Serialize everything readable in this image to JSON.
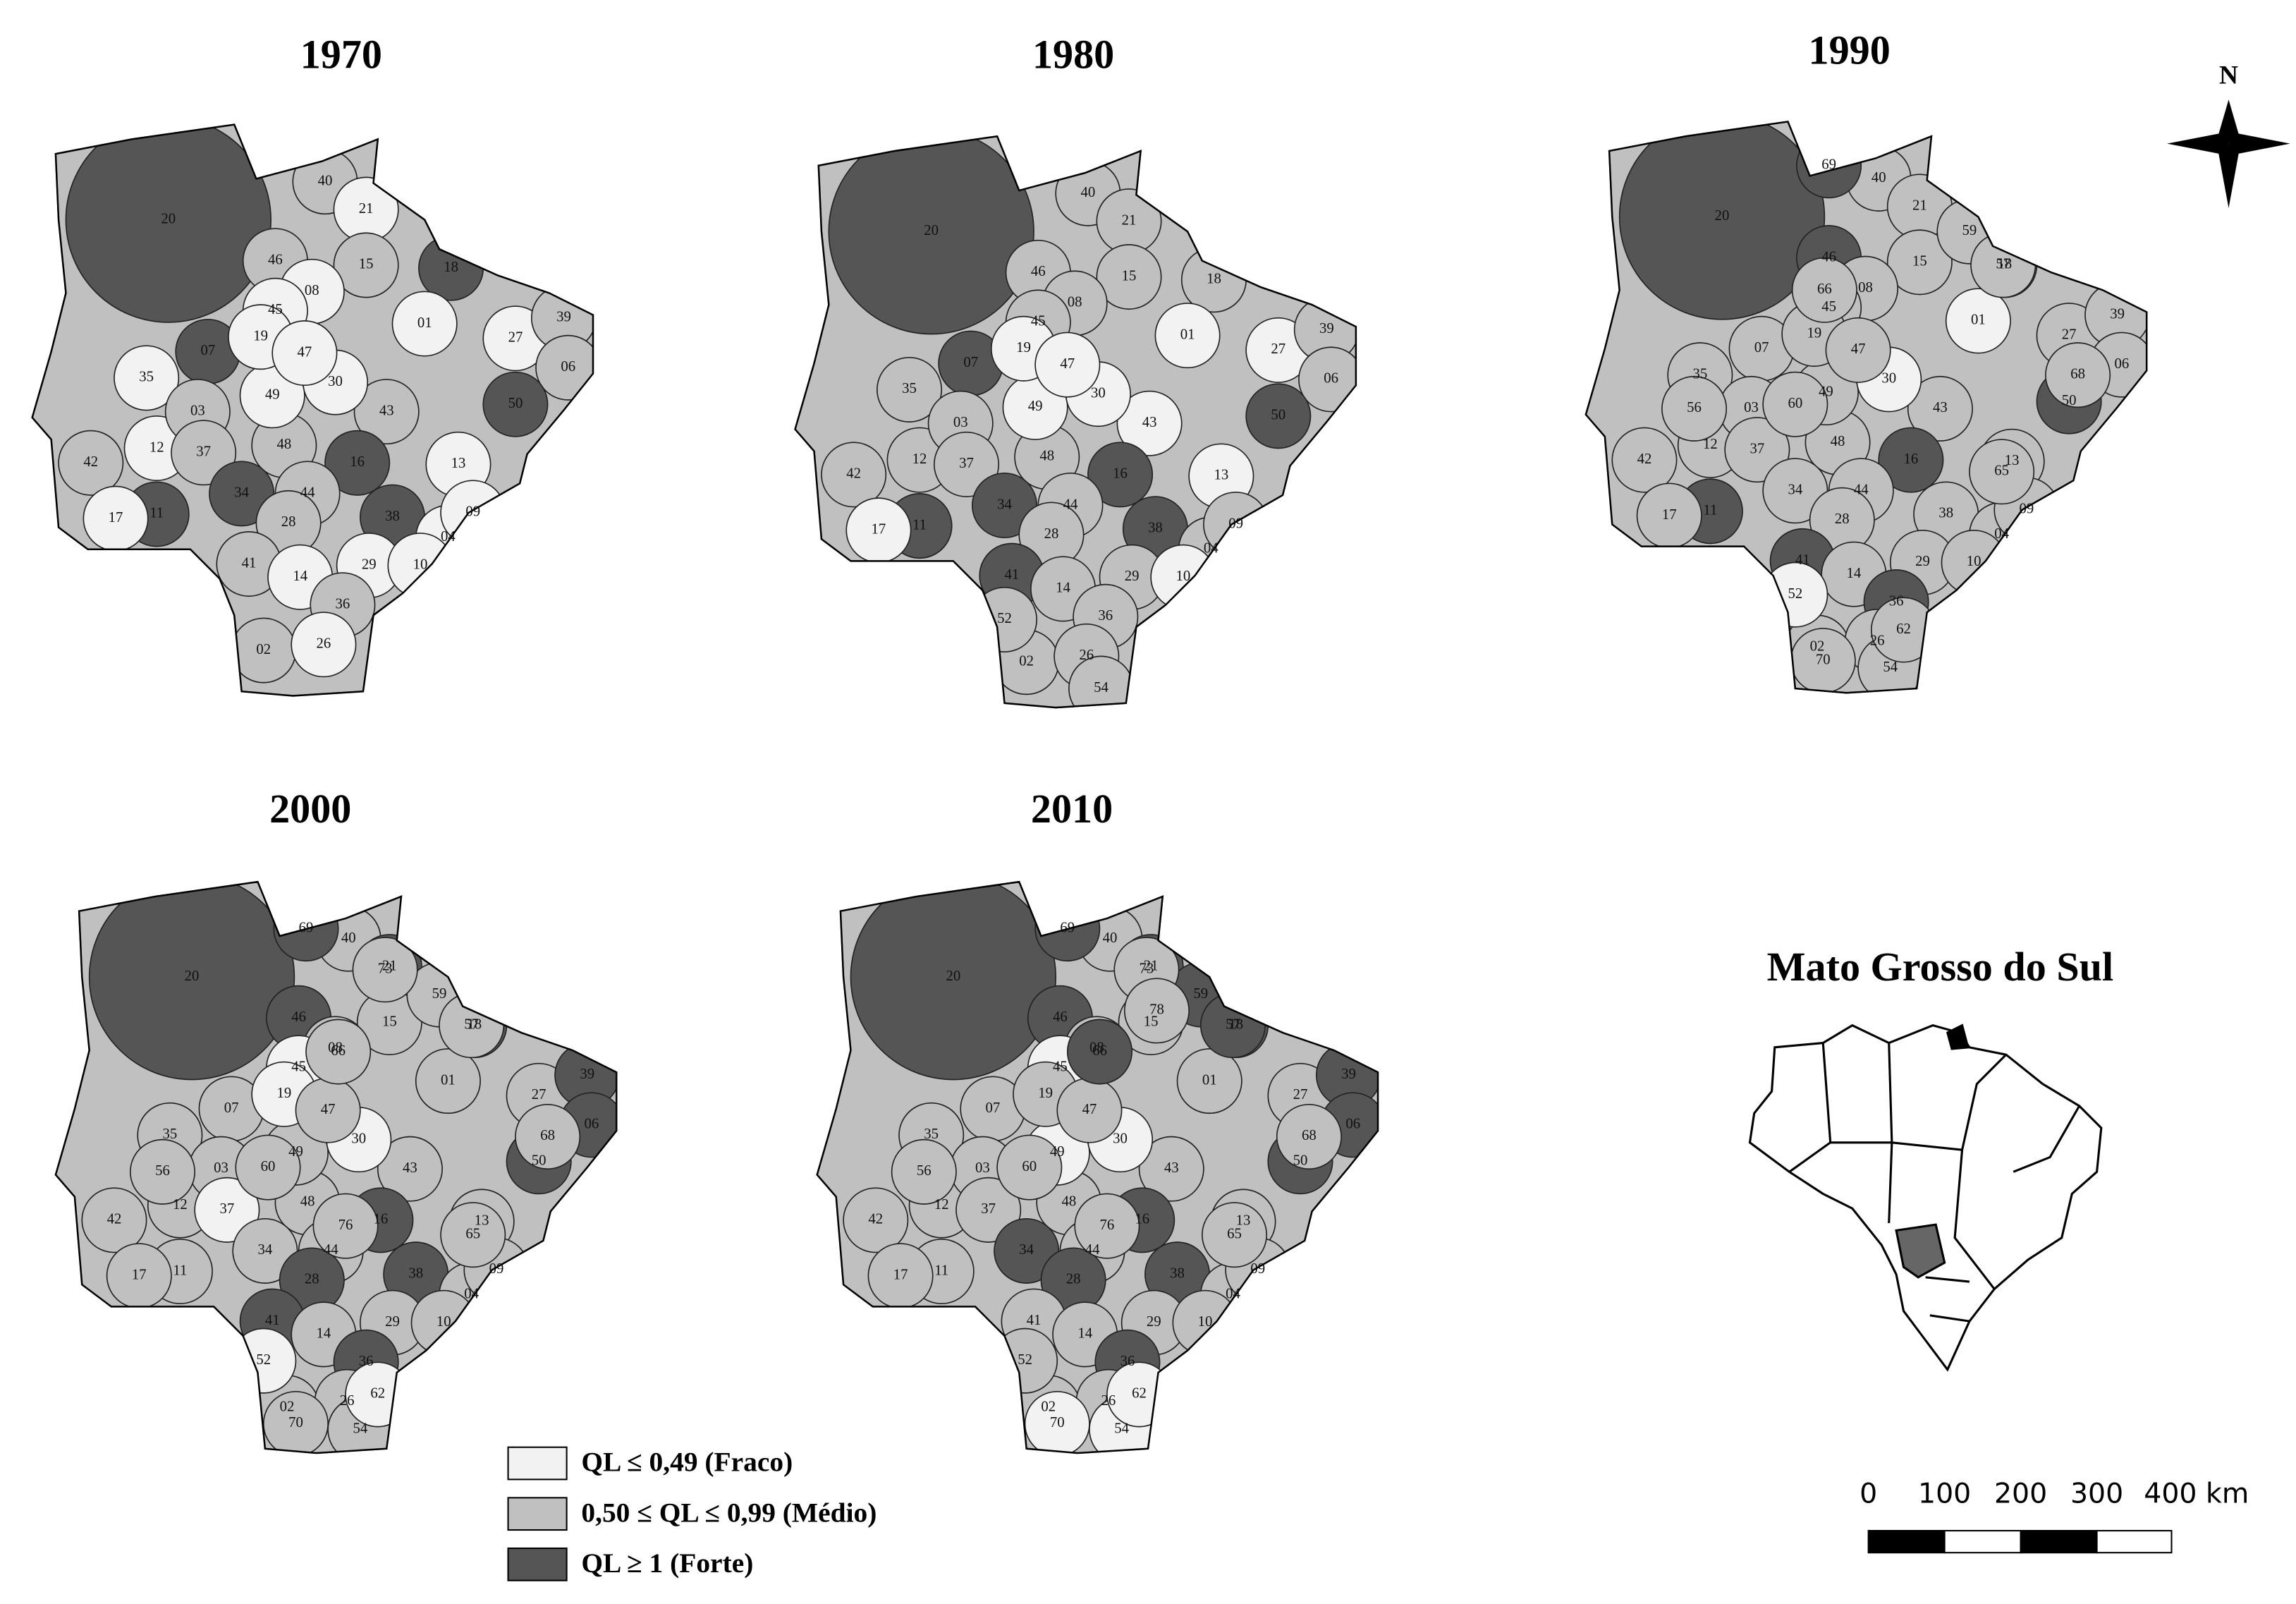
{
  "maps": [
    {
      "year": "1970",
      "regions": {
        "labels": [
          "20",
          "40",
          "21",
          "46",
          "15",
          "18",
          "01",
          "27",
          "39",
          "06",
          "50",
          "07",
          "35",
          "12",
          "03",
          "37",
          "42",
          "48",
          "43",
          "16",
          "13",
          "44",
          "34",
          "11",
          "17",
          "28",
          "38",
          "04",
          "09",
          "41",
          "14",
          "29",
          "10",
          "36",
          "02",
          "26",
          "49",
          "30",
          "08",
          "45",
          "19",
          "47"
        ],
        "classes": [
          2,
          1,
          0,
          1,
          1,
          2,
          0,
          0,
          1,
          1,
          2,
          2,
          0,
          0,
          1,
          1,
          1,
          1,
          1,
          2,
          0,
          1,
          2,
          2,
          0,
          1,
          2,
          0,
          0,
          1,
          0,
          0,
          0,
          1,
          1,
          0,
          0,
          0,
          0,
          0,
          0,
          0
        ]
      }
    },
    {
      "year": "1980",
      "regions": {
        "labels": [
          "20",
          "40",
          "21",
          "46",
          "15",
          "18",
          "01",
          "27",
          "39",
          "06",
          "50",
          "07",
          "35",
          "12",
          "03",
          "37",
          "42",
          "48",
          "43",
          "16",
          "13",
          "44",
          "34",
          "11",
          "17",
          "28",
          "38",
          "04",
          "09",
          "41",
          "14",
          "29",
          "10",
          "36",
          "02",
          "26",
          "49",
          "30",
          "08",
          "45",
          "19",
          "47",
          "52",
          "54"
        ],
        "classes": [
          2,
          1,
          1,
          1,
          1,
          1,
          0,
          0,
          1,
          1,
          2,
          2,
          1,
          1,
          1,
          1,
          1,
          1,
          0,
          2,
          0,
          1,
          2,
          2,
          0,
          1,
          2,
          1,
          1,
          2,
          1,
          1,
          0,
          1,
          1,
          1,
          0,
          0,
          1,
          1,
          0,
          0,
          1,
          1
        ]
      }
    },
    {
      "year": "1990",
      "regions": {
        "labels": [
          "20",
          "40",
          "21",
          "46",
          "15",
          "18",
          "01",
          "27",
          "39",
          "06",
          "50",
          "07",
          "35",
          "12",
          "03",
          "37",
          "42",
          "48",
          "43",
          "16",
          "13",
          "44",
          "34",
          "11",
          "17",
          "28",
          "38",
          "04",
          "09",
          "41",
          "14",
          "29",
          "10",
          "36",
          "02",
          "26",
          "49",
          "30",
          "08",
          "45",
          "19",
          "47",
          "59",
          "57",
          "65",
          "56",
          "60",
          "66",
          "52",
          "54",
          "62",
          "68",
          "69",
          "70"
        ],
        "classes": [
          2,
          1,
          1,
          2,
          1,
          2,
          0,
          1,
          1,
          1,
          2,
          1,
          1,
          1,
          1,
          1,
          1,
          1,
          1,
          2,
          1,
          1,
          1,
          2,
          1,
          1,
          1,
          1,
          1,
          2,
          1,
          1,
          1,
          2,
          1,
          1,
          1,
          0,
          1,
          1,
          1,
          1,
          1,
          1,
          1,
          1,
          1,
          1,
          0,
          1,
          1,
          1,
          2,
          1
        ]
      }
    },
    {
      "year": "2000",
      "regions": {
        "labels": [
          "20",
          "40",
          "21",
          "46",
          "15",
          "18",
          "01",
          "27",
          "39",
          "06",
          "50",
          "07",
          "35",
          "12",
          "03",
          "37",
          "42",
          "48",
          "43",
          "16",
          "13",
          "44",
          "34",
          "11",
          "17",
          "28",
          "38",
          "04",
          "09",
          "41",
          "14",
          "29",
          "10",
          "36",
          "02",
          "26",
          "49",
          "30",
          "08",
          "45",
          "19",
          "47",
          "59",
          "57",
          "65",
          "56",
          "60",
          "66",
          "52",
          "54",
          "62",
          "68",
          "69",
          "70",
          "73",
          "76"
        ],
        "classes": [
          2,
          1,
          2,
          2,
          1,
          2,
          1,
          1,
          2,
          2,
          2,
          1,
          1,
          1,
          1,
          0,
          1,
          1,
          1,
          2,
          1,
          1,
          1,
          1,
          1,
          2,
          2,
          1,
          1,
          2,
          1,
          1,
          1,
          2,
          1,
          1,
          1,
          0,
          1,
          0,
          0,
          1,
          1,
          1,
          1,
          1,
          1,
          1,
          0,
          1,
          0,
          1,
          2,
          1,
          1,
          1
        ]
      }
    },
    {
      "year": "2010",
      "regions": {
        "labels": [
          "20",
          "40",
          "21",
          "46",
          "15",
          "18",
          "01",
          "27",
          "39",
          "06",
          "50",
          "07",
          "35",
          "12",
          "03",
          "37",
          "42",
          "48",
          "43",
          "16",
          "13",
          "44",
          "34",
          "11",
          "17",
          "28",
          "38",
          "04",
          "09",
          "41",
          "14",
          "29",
          "10",
          "36",
          "02",
          "26",
          "49",
          "30",
          "08",
          "45",
          "19",
          "47",
          "59",
          "57",
          "65",
          "56",
          "60",
          "66",
          "52",
          "54",
          "62",
          "68",
          "69",
          "70",
          "73",
          "76",
          "78"
        ],
        "classes": [
          2,
          1,
          2,
          2,
          1,
          2,
          1,
          1,
          2,
          2,
          2,
          1,
          1,
          1,
          1,
          1,
          1,
          1,
          1,
          2,
          1,
          1,
          2,
          1,
          1,
          2,
          2,
          1,
          1,
          1,
          1,
          1,
          1,
          2,
          1,
          1,
          0,
          0,
          1,
          0,
          1,
          1,
          2,
          2,
          1,
          1,
          1,
          2,
          1,
          0,
          0,
          1,
          2,
          0,
          1,
          1,
          1
        ]
      }
    }
  ],
  "north": "N",
  "inset": {
    "title": "Mato Grosso do Sul"
  },
  "legend": [
    {
      "label": "QL ≤ 0,49 (Fraco)",
      "color": "#f2f2f2"
    },
    {
      "label": "0,50 ≤ QL ≤ 0,99 (Médio)",
      "color": "#c0c0c0"
    },
    {
      "label": "QL ≥ 1 (Forte)",
      "color": "#555555"
    }
  ],
  "scale_bar": {
    "labels": [
      "0",
      "100",
      "200",
      "300",
      "400 km"
    ]
  }
}
